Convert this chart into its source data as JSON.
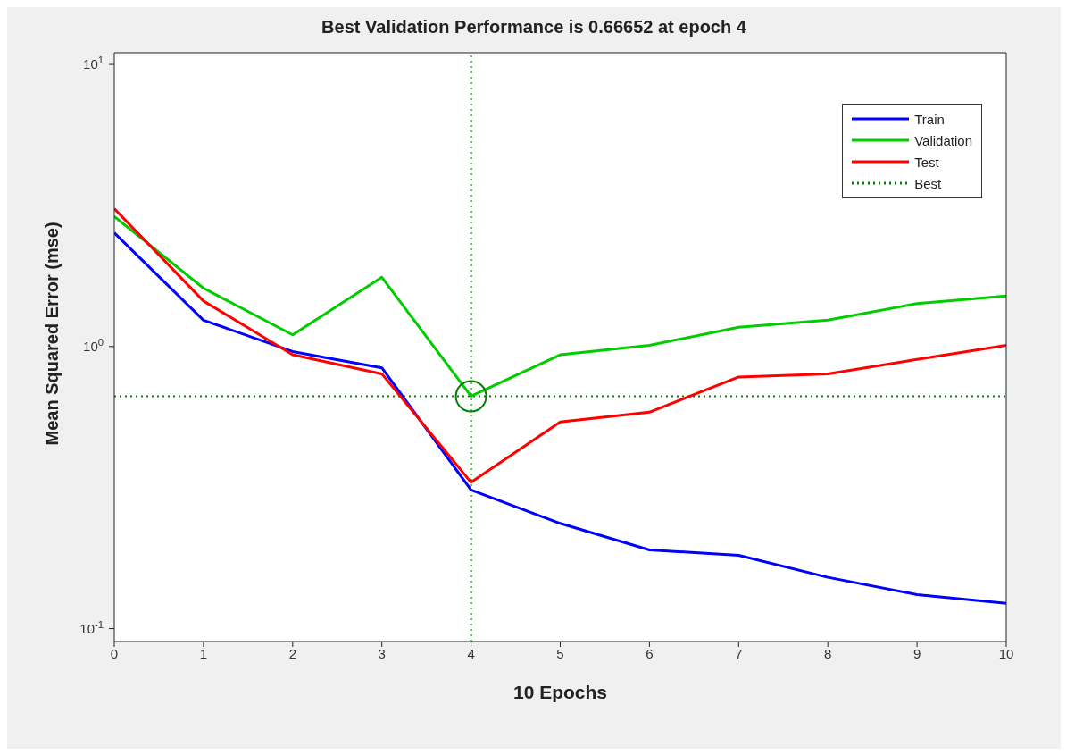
{
  "chart_data": {
    "type": "line",
    "title": "Best Validation Performance is 0.66652 at epoch 4",
    "xlabel": "10 Epochs",
    "ylabel": "Mean Squared Error  (mse)",
    "log": "y",
    "x": [
      0,
      1,
      2,
      3,
      4,
      5,
      6,
      7,
      8,
      9,
      10
    ],
    "xlim": [
      0,
      10
    ],
    "xticks": [
      0,
      1,
      2,
      3,
      4,
      5,
      6,
      7,
      8,
      9,
      10
    ],
    "ylim": [
      0.09,
      11
    ],
    "yticks": [
      {
        "value": 0.1,
        "label": "10$^{-1}$"
      },
      {
        "value": 1,
        "label": "10$^{0}$"
      },
      {
        "value": 10,
        "label": "10$^{1}$"
      }
    ],
    "grid": false,
    "legend": "top right",
    "marker": "none",
    "line_style": "solid",
    "series": [
      {
        "name": "Train",
        "color": "#0000ff",
        "values": [
          2.53,
          1.24,
          0.96,
          0.84,
          0.31,
          0.236,
          0.19,
          0.182,
          0.152,
          0.132,
          0.123
        ]
      },
      {
        "name": "Validation",
        "color": "#00cc00",
        "values": [
          2.89,
          1.61,
          1.1,
          1.76,
          0.66652,
          0.935,
          1.01,
          1.17,
          1.24,
          1.42,
          1.51
        ]
      },
      {
        "name": "Test",
        "color": "#ff0000",
        "values": [
          3.08,
          1.45,
          0.935,
          0.8,
          0.33,
          0.54,
          0.585,
          0.78,
          0.8,
          0.9,
          1.01
        ]
      },
      {
        "type": "scatter",
        "marker": "circle",
        "color": "#008000",
        "x": [
          4
        ],
        "values": [
          0.66652
        ]
      }
    ],
    "ref_lines": [
      {
        "axis": "x",
        "value": 4,
        "color": "#008000",
        "line_style": "dotted"
      },
      {
        "axis": "y",
        "value": 0.66652,
        "label": "Best",
        "color": "#008000",
        "line_style": "dotted"
      }
    ]
  }
}
